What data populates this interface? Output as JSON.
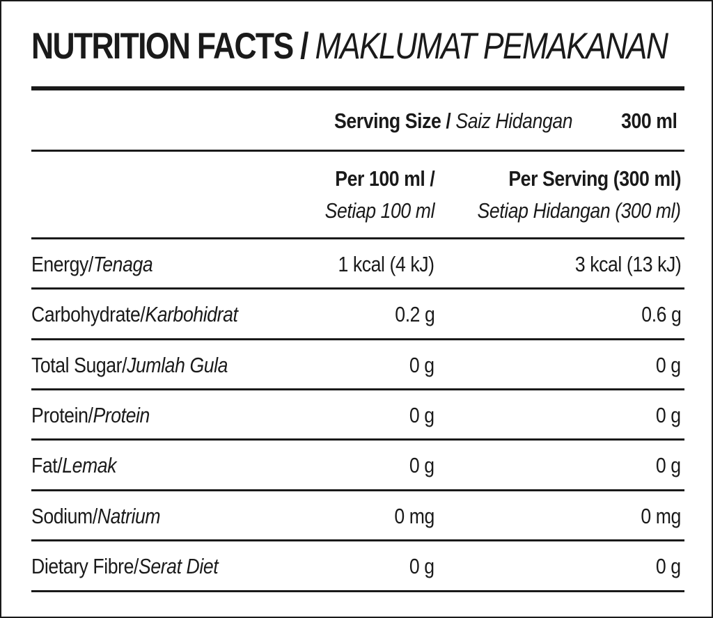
{
  "title": {
    "en": "NUTRITION FACTS",
    "separator": "/",
    "ms": "MAKLUMAT PEMAKANAN"
  },
  "serving": {
    "label_en": "Serving Size",
    "separator": "/",
    "label_ms": "Saiz Hidangan",
    "value": "300 ml"
  },
  "columns": [
    {
      "header_en": "Per 100 ml /",
      "header_ms": "Setiap 100 ml"
    },
    {
      "header_en": "Per Serving (300 ml)",
      "header_ms": "Setiap Hidangan (300 ml)"
    }
  ],
  "rows": [
    {
      "name_en": "Energy/",
      "name_ms": "Tenaga",
      "per100": "1 kcal (4 kJ)",
      "perServing": "3 kcal (13 kJ)"
    },
    {
      "name_en": "Carbohydrate/",
      "name_ms": "Karbohidrat",
      "per100": "0.2 g",
      "perServing": "0.6 g"
    },
    {
      "name_en": "Total Sugar/",
      "name_ms": "Jumlah Gula",
      "per100": "0 g",
      "perServing": "0 g"
    },
    {
      "name_en": "Protein/",
      "name_ms": "Protein",
      "per100": "0 g",
      "perServing": "0 g"
    },
    {
      "name_en": "Fat/",
      "name_ms": "Lemak",
      "per100": "0 g",
      "perServing": "0 g"
    },
    {
      "name_en": "Sodium/",
      "name_ms": "Natrium",
      "per100": "0 mg",
      "perServing": "0 mg"
    },
    {
      "name_en": "Dietary Fibre/",
      "name_ms": "Serat Diet",
      "per100": "0 g",
      "perServing": "0 g"
    }
  ]
}
